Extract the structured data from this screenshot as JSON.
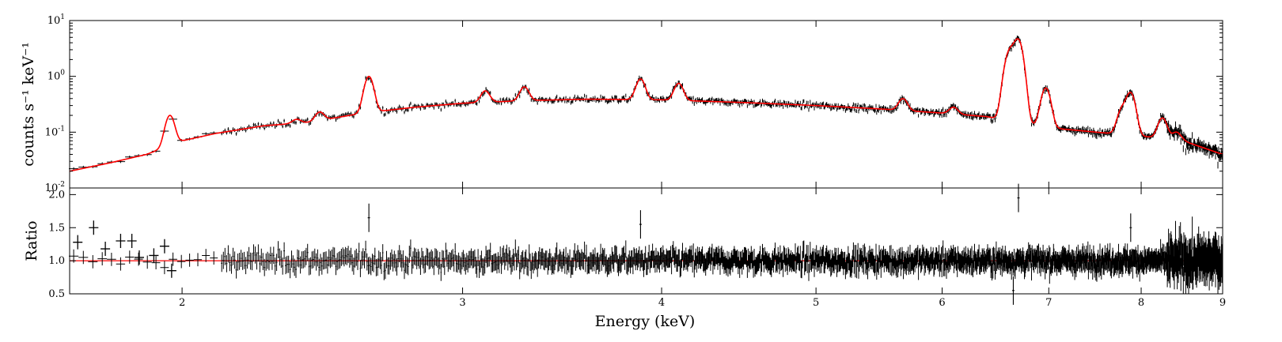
{
  "chart_data": [
    {
      "panel": "spectrum",
      "type": "line",
      "ylabel": "counts s⁻¹ keV⁻¹",
      "yscale": "log",
      "ylim": [
        0.01,
        10
      ],
      "xscale": "log",
      "xlim": [
        1.7,
        9.0
      ],
      "y_ticks": [
        {
          "base": "10",
          "exp": "1",
          "value": 10
        },
        {
          "base": "10",
          "exp": "0",
          "value": 1
        },
        {
          "base": "10",
          "exp": "-1",
          "value": 0.1
        },
        {
          "base": "10",
          "exp": "-2",
          "value": 0.01
        }
      ],
      "series": [
        {
          "role": "data",
          "color": "#000000",
          "style": "crosses with error bars"
        },
        {
          "role": "model",
          "color": "#ff0000",
          "style": "line"
        }
      ],
      "continuum": [
        [
          1.7,
          0.02
        ],
        [
          1.8,
          0.028
        ],
        [
          1.9,
          0.04
        ],
        [
          2.0,
          0.07
        ],
        [
          2.1,
          0.095
        ],
        [
          2.25,
          0.13
        ],
        [
          2.4,
          0.15
        ],
        [
          2.6,
          0.22
        ],
        [
          2.8,
          0.28
        ],
        [
          3.0,
          0.33
        ],
        [
          3.3,
          0.37
        ],
        [
          3.6,
          0.39
        ],
        [
          4.0,
          0.38
        ],
        [
          4.5,
          0.34
        ],
        [
          5.0,
          0.3
        ],
        [
          5.5,
          0.26
        ],
        [
          6.0,
          0.22
        ],
        [
          6.4,
          0.19
        ],
        [
          6.7,
          0.15
        ],
        [
          7.0,
          0.12
        ],
        [
          7.5,
          0.1
        ],
        [
          8.0,
          0.085
        ],
        [
          8.5,
          0.07
        ],
        [
          9.0,
          0.04
        ]
      ],
      "emission_lines": [
        {
          "energy": 1.965,
          "peak": 0.2
        },
        {
          "energy": 2.36,
          "peak": 0.17
        },
        {
          "energy": 2.44,
          "peak": 0.23
        },
        {
          "energy": 2.62,
          "peak": 1.0
        },
        {
          "energy": 2.88,
          "peak": 0.3
        },
        {
          "energy": 3.1,
          "peak": 0.55
        },
        {
          "energy": 3.28,
          "peak": 0.65
        },
        {
          "energy": 3.88,
          "peak": 0.9
        },
        {
          "energy": 4.1,
          "peak": 0.75
        },
        {
          "energy": 5.67,
          "peak": 0.4
        },
        {
          "energy": 6.1,
          "peak": 0.28
        },
        {
          "energy": 6.6,
          "peak": 1.6
        },
        {
          "energy": 6.63,
          "peak": 1.5
        },
        {
          "energy": 6.7,
          "peak": 4.3
        },
        {
          "energy": 6.97,
          "peak": 0.62
        },
        {
          "energy": 7.78,
          "peak": 0.25
        },
        {
          "energy": 7.88,
          "peak": 0.5
        },
        {
          "energy": 8.25,
          "peak": 0.18
        },
        {
          "energy": 8.42,
          "peak": 0.1
        }
      ]
    },
    {
      "panel": "ratio",
      "type": "line",
      "xlabel": "Energy (keV)",
      "ylabel": "Ratio",
      "ylim": [
        0.5,
        2.1
      ],
      "xscale": "log",
      "xlim": [
        1.7,
        9.0
      ],
      "y_ticks": [
        "0.5",
        "1.0",
        "1.5",
        "2.0"
      ],
      "x_ticks": [
        {
          "label": "2",
          "value": 2
        },
        {
          "label": "3",
          "value": 3
        },
        {
          "label": "4",
          "value": 4
        },
        {
          "label": "5",
          "value": 5
        },
        {
          "label": "6",
          "value": 6
        },
        {
          "label": "7",
          "value": 7
        },
        {
          "label": "8",
          "value": 8
        },
        {
          "label": "9",
          "value": 9
        }
      ],
      "reference_line": {
        "y": 1.0,
        "color": "#ff0000"
      },
      "notable_points": [
        {
          "x": 1.72,
          "y": 1.28
        },
        {
          "x": 1.76,
          "y": 1.5
        },
        {
          "x": 1.79,
          "y": 1.18
        },
        {
          "x": 1.83,
          "y": 1.3
        },
        {
          "x": 1.86,
          "y": 1.3
        },
        {
          "x": 1.88,
          "y": 1.05
        },
        {
          "x": 1.92,
          "y": 1.08
        },
        {
          "x": 1.95,
          "y": 1.22
        },
        {
          "x": 1.97,
          "y": 0.85
        },
        {
          "x": 2.62,
          "y": 1.65
        },
        {
          "x": 3.88,
          "y": 1.55
        },
        {
          "x": 6.7,
          "y": 1.95
        },
        {
          "x": 6.65,
          "y": 0.55
        },
        {
          "x": 7.88,
          "y": 1.5
        }
      ]
    }
  ]
}
